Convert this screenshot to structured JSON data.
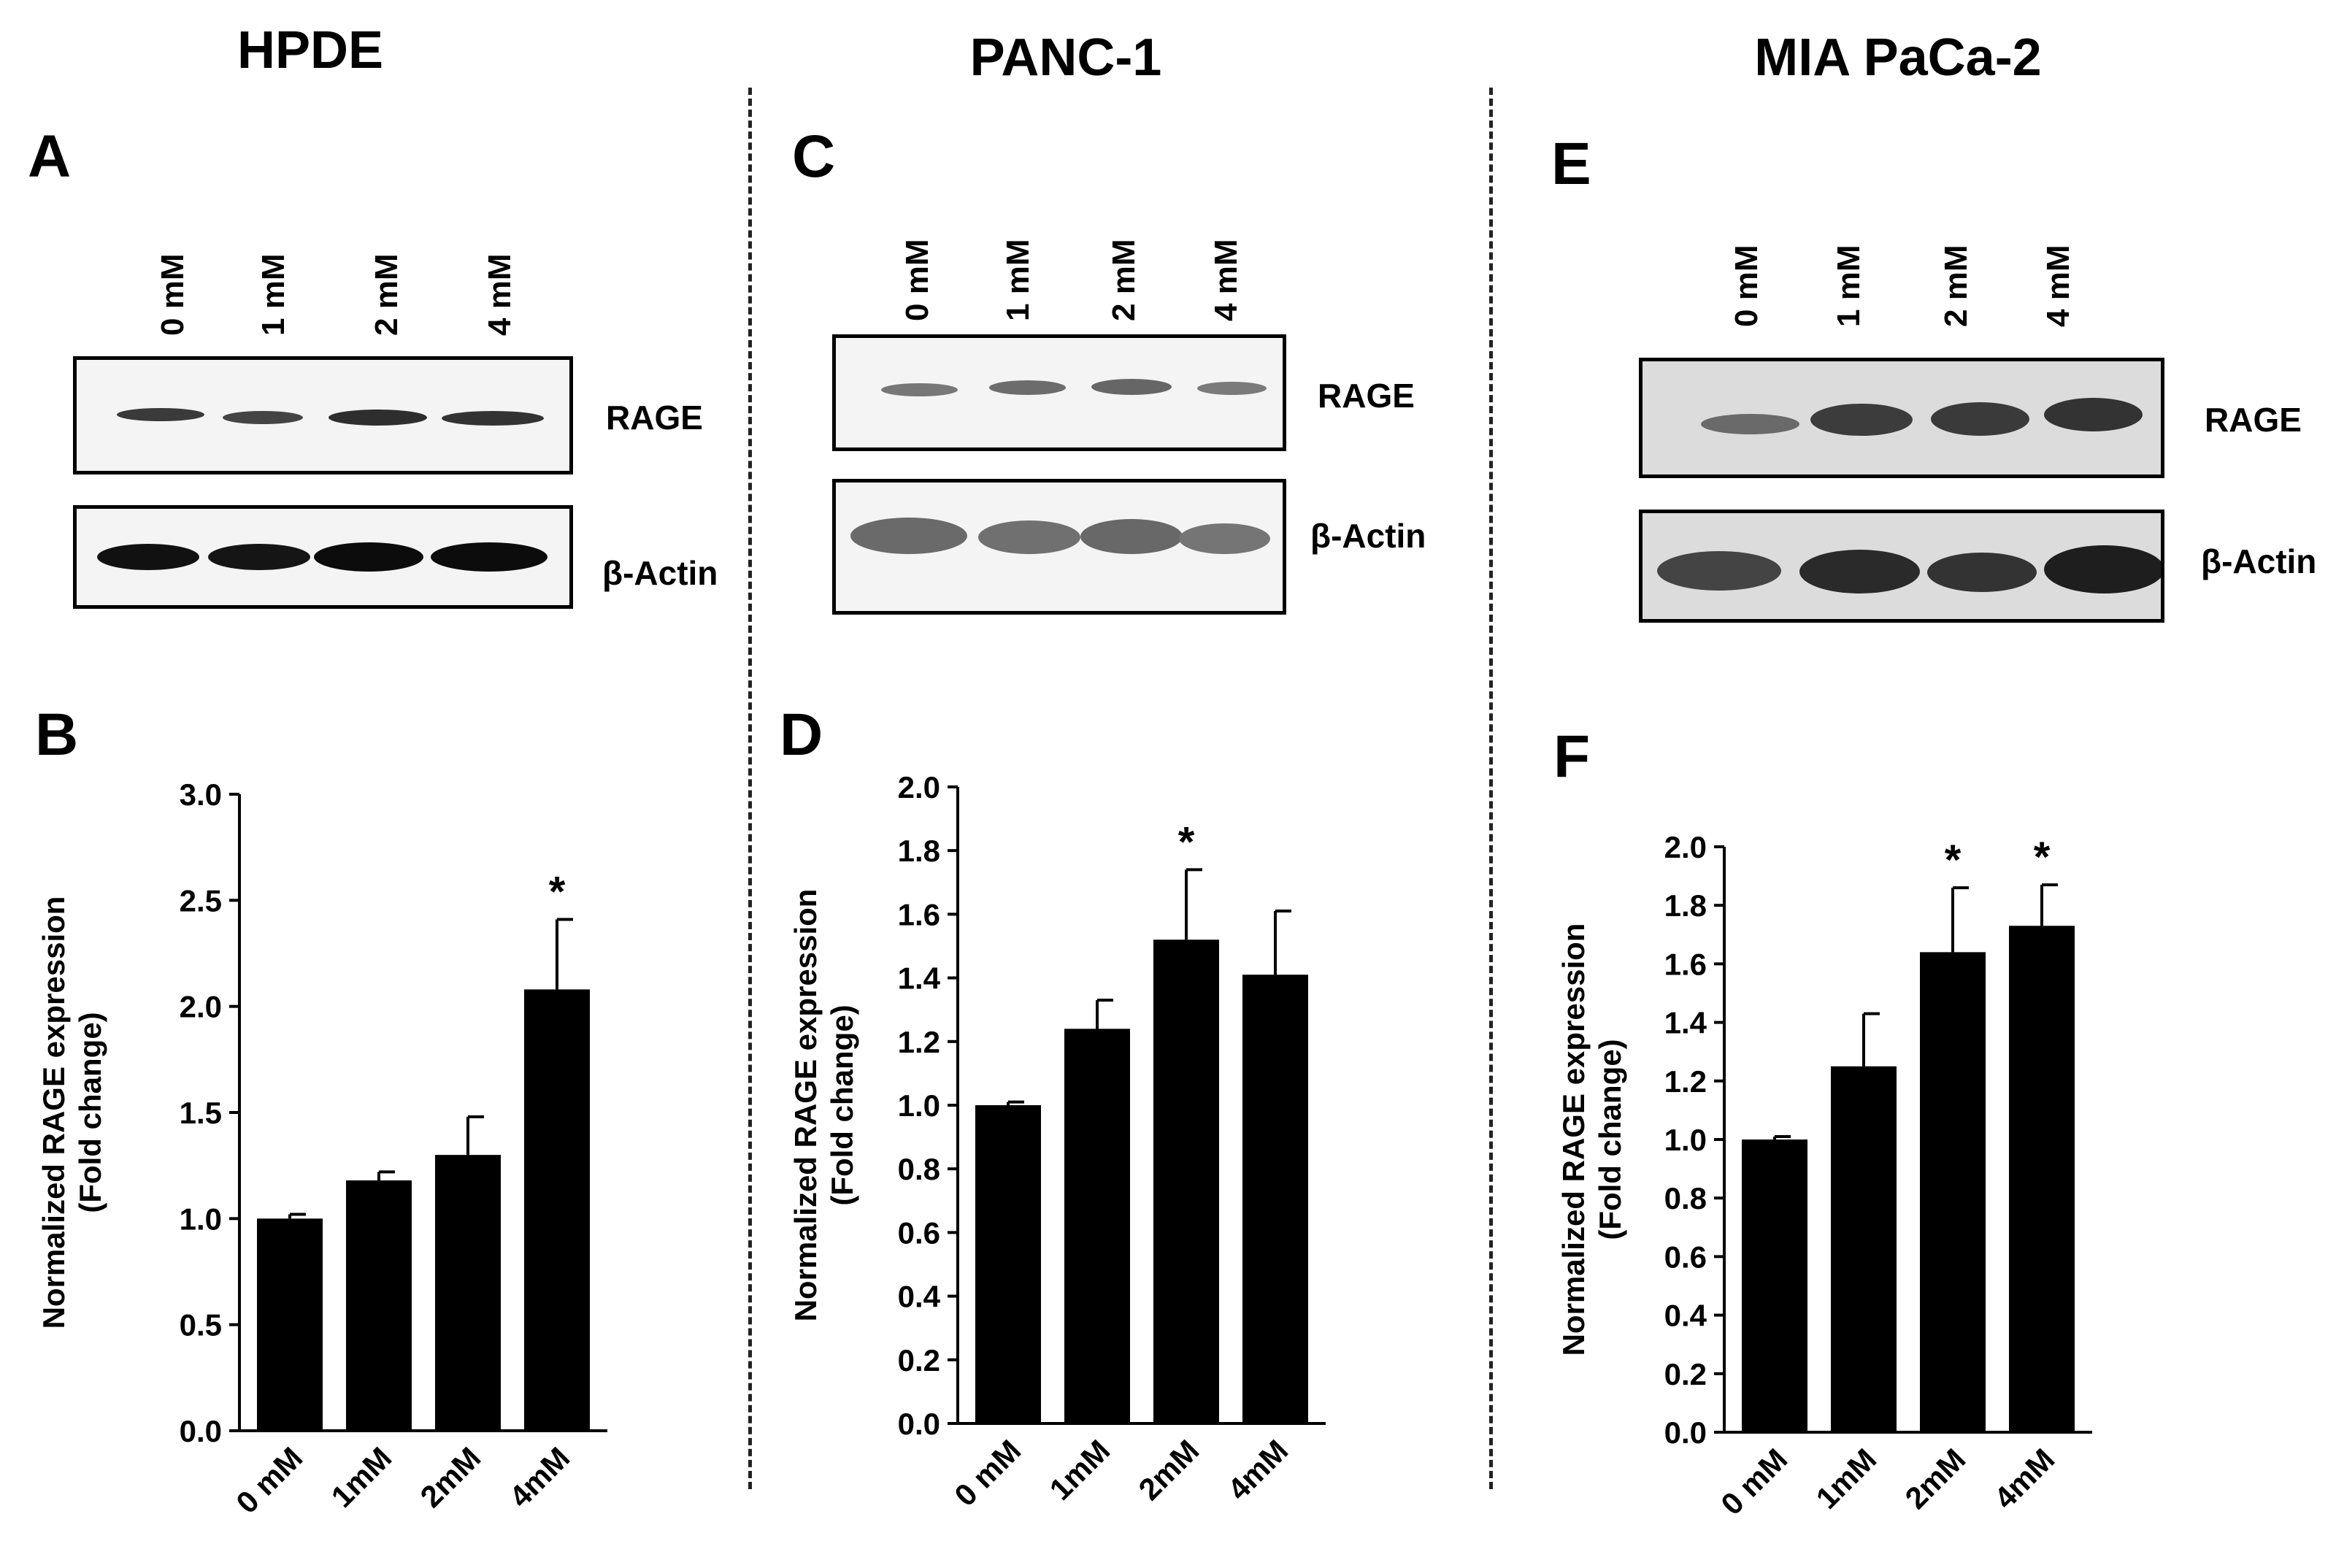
{
  "titles": [
    "HPDE",
    "PANC-1",
    "MIA PaCa-2"
  ],
  "panel_letters": {
    "A": "A",
    "B": "B",
    "C": "C",
    "D": "D",
    "E": "E",
    "F": "F"
  },
  "blots": {
    "lane_labels": [
      "0 mM",
      "1 mM",
      "2 mM",
      "4 mM"
    ],
    "row_labels": [
      "RAGE",
      "β-Actin"
    ]
  },
  "chart_data": [
    {
      "type": "bar",
      "panel": "B",
      "categories": [
        "0 mM",
        "1mM",
        "2mM",
        "4mM"
      ],
      "values": [
        1.0,
        1.18,
        1.3,
        2.08
      ],
      "errors": [
        0.02,
        0.04,
        0.18,
        0.33
      ],
      "significant": [
        false,
        false,
        false,
        true
      ],
      "ylabel": "Normalized RAGE expression (Fold change)",
      "ylim": [
        0,
        3.0
      ],
      "yticks": [
        "0.0",
        "0.5",
        "1.0",
        "1.5",
        "2.0",
        "2.5",
        "3.0"
      ],
      "annotation": "*"
    },
    {
      "type": "bar",
      "panel": "D",
      "categories": [
        "0 mM",
        "1mM",
        "2mM",
        "4mM"
      ],
      "values": [
        1.0,
        1.24,
        1.52,
        1.41
      ],
      "errors": [
        0.01,
        0.09,
        0.22,
        0.2
      ],
      "significant": [
        false,
        false,
        true,
        false
      ],
      "ylabel": "Normalized RAGE expression (Fold change)",
      "ylim": [
        0,
        2.0
      ],
      "yticks": [
        "0.0",
        "0.2",
        "0.4",
        "0.6",
        "0.8",
        "1.0",
        "1.2",
        "1.4",
        "1.6",
        "1.8",
        "2.0"
      ],
      "annotation": "*"
    },
    {
      "type": "bar",
      "panel": "F",
      "categories": [
        "0 mM",
        "1mM",
        "2mM",
        "4mM"
      ],
      "values": [
        1.0,
        1.25,
        1.64,
        1.73
      ],
      "errors": [
        0.01,
        0.18,
        0.22,
        0.14
      ],
      "significant": [
        false,
        false,
        true,
        true
      ],
      "ylabel": "Normalized RAGE expression (Fold change)",
      "ylim": [
        0,
        2.0
      ],
      "yticks": [
        "0.0",
        "0.2",
        "0.4",
        "0.6",
        "0.8",
        "1.0",
        "1.2",
        "1.4",
        "1.6",
        "1.8",
        "2.0"
      ],
      "annotation": "*"
    }
  ]
}
